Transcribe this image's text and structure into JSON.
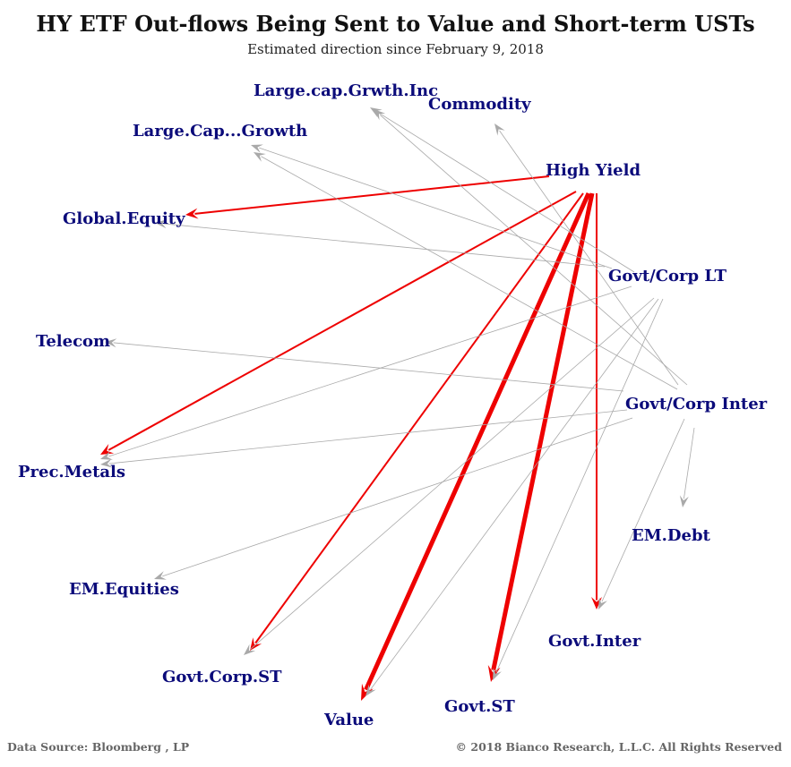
{
  "title": "HY ETF Out-flows Being Sent to Value and Short-term USTs",
  "subtitle": "Estimated direction since February 9, 2018",
  "footer": {
    "source": "Data Source: Bloomberg , LP",
    "copyright": "© 2018 Bianco Research, L.L.C. All Rights Reserved"
  },
  "colors": {
    "node_label": "#0b0b7a",
    "highlight_edge": "#ee0000",
    "other_edge": "#a9a9a9"
  },
  "chart_data": {
    "type": "network",
    "nodes": [
      "Large.cap.Grwth.Inc",
      "Commodity",
      "Large.Cap...Growth",
      "High Yield",
      "Global.Equity",
      "Govt/Corp LT",
      "Telecom",
      "Govt/Corp Inter",
      "Prec.Metals",
      "EM.Debt",
      "EM.Equities",
      "Govt.Inter",
      "Govt.Corp.ST",
      "Value",
      "Govt.ST"
    ],
    "edges": [
      {
        "from": "High Yield",
        "to": "Global.Equity",
        "highlight": true,
        "weight": 2
      },
      {
        "from": "High Yield",
        "to": "Prec.Metals",
        "highlight": true,
        "weight": 2
      },
      {
        "from": "High Yield",
        "to": "Govt.Corp.ST",
        "highlight": true,
        "weight": 2
      },
      {
        "from": "High Yield",
        "to": "Value",
        "highlight": true,
        "weight": 5
      },
      {
        "from": "High Yield",
        "to": "Govt.ST",
        "highlight": true,
        "weight": 5
      },
      {
        "from": "High Yield",
        "to": "Govt.Inter",
        "highlight": true,
        "weight": 2
      },
      {
        "from": "Govt/Corp LT",
        "to": "Large.cap.Grwth.Inc",
        "highlight": false,
        "weight": 1
      },
      {
        "from": "Govt/Corp LT",
        "to": "Large.Cap...Growth",
        "highlight": false,
        "weight": 1
      },
      {
        "from": "Govt/Corp LT",
        "to": "Global.Equity",
        "highlight": false,
        "weight": 1
      },
      {
        "from": "Govt/Corp LT",
        "to": "Prec.Metals",
        "highlight": false,
        "weight": 1
      },
      {
        "from": "Govt/Corp LT",
        "to": "Govt.Corp.ST",
        "highlight": false,
        "weight": 1
      },
      {
        "from": "Govt/Corp LT",
        "to": "Value",
        "highlight": false,
        "weight": 1
      },
      {
        "from": "Govt/Corp LT",
        "to": "Govt.ST",
        "highlight": false,
        "weight": 1
      },
      {
        "from": "Govt/Corp Inter",
        "to": "Large.cap.Grwth.Inc",
        "highlight": false,
        "weight": 1
      },
      {
        "from": "Govt/Corp Inter",
        "to": "Commodity",
        "highlight": false,
        "weight": 1
      },
      {
        "from": "Govt/Corp Inter",
        "to": "Large.Cap...Growth",
        "highlight": false,
        "weight": 1
      },
      {
        "from": "Govt/Corp Inter",
        "to": "Telecom",
        "highlight": false,
        "weight": 1
      },
      {
        "from": "Govt/Corp Inter",
        "to": "Prec.Metals",
        "highlight": false,
        "weight": 1
      },
      {
        "from": "Govt/Corp Inter",
        "to": "EM.Equities",
        "highlight": false,
        "weight": 1
      },
      {
        "from": "Govt/Corp Inter",
        "to": "EM.Debt",
        "highlight": false,
        "weight": 1
      },
      {
        "from": "Govt/Corp Inter",
        "to": "Govt.Inter",
        "highlight": false,
        "weight": 1
      }
    ]
  }
}
